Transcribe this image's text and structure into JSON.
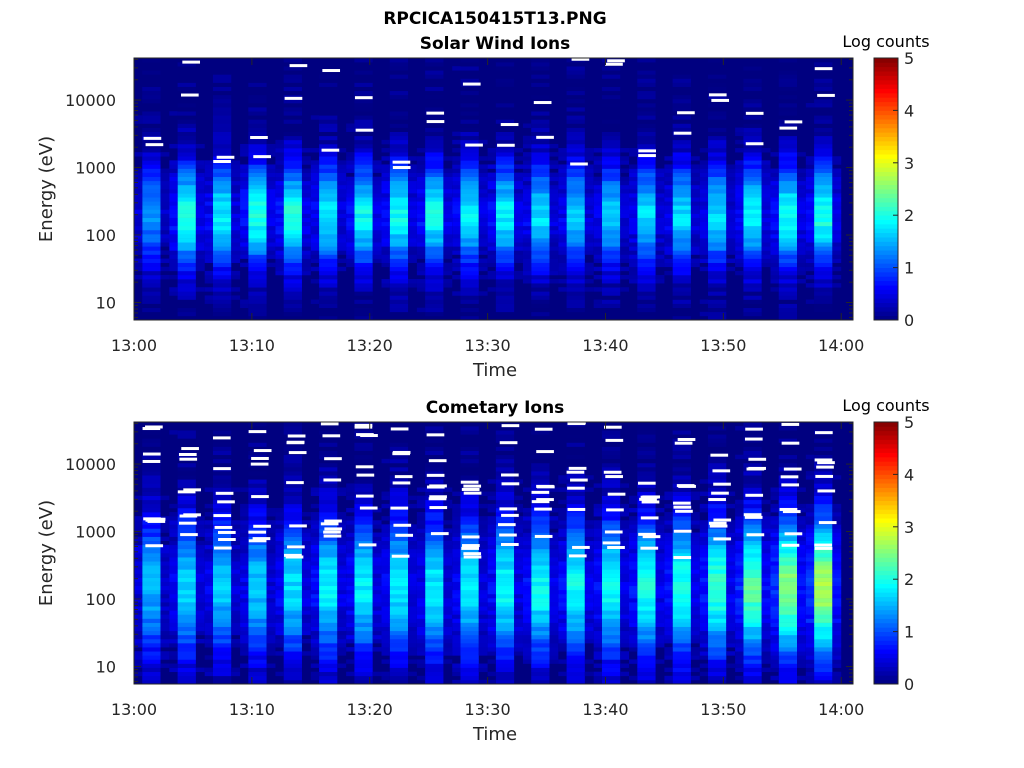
{
  "figure": {
    "title": "RPCICA150415T13.PNG"
  },
  "chart_data": [
    {
      "type": "heatmap",
      "title": "Solar Wind Ions",
      "xlabel": "Time",
      "ylabel": "Energy (eV)",
      "x_tick_labels": [
        "13:00",
        "13:10",
        "13:20",
        "13:30",
        "13:40",
        "13:50",
        "14:00"
      ],
      "x_range": [
        "13:00",
        "14:01"
      ],
      "y_scale": "log",
      "y_tick_labels": [
        "10",
        "100",
        "1000",
        "10000"
      ],
      "y_range": [
        5.5,
        42000
      ],
      "colorbar": {
        "label": "Log counts",
        "ticks": [
          "0",
          "1",
          "2",
          "3",
          "4",
          "5"
        ],
        "range": [
          0,
          5
        ],
        "colormap": "jet"
      },
      "sweep_start_times": [
        "13:00",
        "13:03",
        "13:06",
        "13:09",
        "13:12",
        "13:15",
        "13:18",
        "13:21",
        "13:24",
        "13:27",
        "13:30",
        "13:33",
        "13:36",
        "13:39",
        "13:42",
        "13:45",
        "13:48",
        "13:51",
        "13:54",
        "13:57"
      ],
      "peak_energy_eV": 200,
      "peak_log_counts": [
        1.3,
        2.0,
        1.8,
        2.0,
        2.0,
        1.8,
        1.9,
        1.9,
        1.9,
        1.8,
        1.8,
        1.7,
        1.6,
        1.6,
        1.7,
        1.7,
        1.7,
        1.8,
        1.9,
        2.0
      ],
      "grid": false
    },
    {
      "type": "heatmap",
      "title": "Cometary Ions",
      "xlabel": "Time",
      "ylabel": "Energy (eV)",
      "x_tick_labels": [
        "13:00",
        "13:10",
        "13:20",
        "13:30",
        "13:40",
        "13:50",
        "14:00"
      ],
      "x_range": [
        "13:00",
        "14:01"
      ],
      "y_scale": "log",
      "y_tick_labels": [
        "10",
        "100",
        "1000",
        "10000"
      ],
      "y_range": [
        5.5,
        42000
      ],
      "colorbar": {
        "label": "Log counts",
        "ticks": [
          "0",
          "1",
          "2",
          "3",
          "4",
          "5"
        ],
        "range": [
          0,
          5
        ],
        "colormap": "jet"
      },
      "sweep_start_times": [
        "13:00",
        "13:03",
        "13:06",
        "13:09",
        "13:12",
        "13:15",
        "13:18",
        "13:21",
        "13:24",
        "13:27",
        "13:30",
        "13:33",
        "13:36",
        "13:39",
        "13:42",
        "13:45",
        "13:48",
        "13:51",
        "13:54",
        "13:57"
      ],
      "peak_energy_eV": 150,
      "peak_log_counts": [
        1.5,
        1.7,
        1.6,
        1.6,
        1.7,
        1.8,
        1.8,
        1.8,
        1.8,
        1.8,
        1.9,
        1.9,
        1.9,
        1.9,
        2.0,
        2.0,
        2.1,
        2.3,
        2.5,
        2.7
      ],
      "grid": false
    }
  ]
}
